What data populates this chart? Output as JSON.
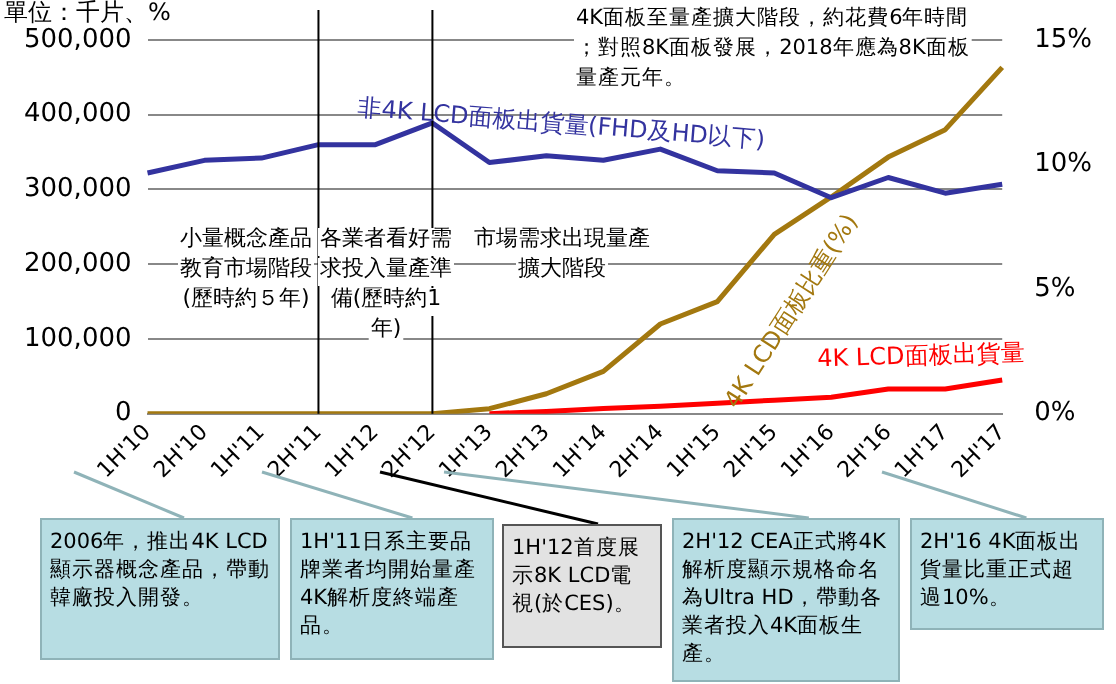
{
  "chart_data": {
    "type": "line",
    "ylabel": "單位：千片、%",
    "categories": [
      "1H'10",
      "2H'10",
      "1H'11",
      "2H'11",
      "1H'12",
      "2H'12",
      "1H'13",
      "2H'13",
      "1H'14",
      "2H'14",
      "1H'15",
      "2H'15",
      "1H'16",
      "2H'16",
      "1H'17",
      "2H'17"
    ],
    "series": [
      {
        "name": "非4K LCD面板出貨量(FHD及HD以下)",
        "color": "#33339f",
        "values": [
          322000,
          339000,
          342000,
          360000,
          360000,
          389000,
          336000,
          345000,
          339000,
          354000,
          325000,
          322000,
          289000,
          316000,
          295000,
          307000
        ]
      },
      {
        "name": "4K LCD面板比重(%)",
        "color": "#a3780f",
        "axis": "y2",
        "values": [
          0,
          0,
          0,
          0,
          0,
          0,
          0.2,
          0.8,
          1.7,
          3.6,
          4.5,
          7.2,
          8.7,
          10.3,
          11.4,
          13.9
        ]
      },
      {
        "name": "4K LCD面板出貨量",
        "color": "#ff0000",
        "values": [
          null,
          null,
          null,
          null,
          null,
          null,
          0,
          3000,
          7000,
          10000,
          14000,
          18000,
          22000,
          33000,
          33000,
          45000
        ]
      }
    ],
    "ylim": [
      0,
      500000
    ],
    "yticks": [
      0,
      {
        "value": 100000,
        "label": "100,000"
      },
      {
        "value": 200000,
        "label": "200,000"
      },
      {
        "value": 300000,
        "label": "300,000"
      },
      {
        "value": 400000,
        "label": "400,000"
      },
      {
        "value": 500000,
        "label": "500,000"
      }
    ],
    "y2lim": [
      0,
      15
    ],
    "y2ticks": [
      {
        "value": 0,
        "label": "0%"
      },
      {
        "value": 5,
        "label": "5%"
      },
      {
        "value": 10,
        "label": "10%"
      },
      {
        "value": 15,
        "label": "15%"
      }
    ],
    "grid": "y",
    "legend": false,
    "marker": "none",
    "line_style": "solid",
    "ref_lines": [
      {
        "axis": "x",
        "value": "2H'11",
        "color": "#000000"
      },
      {
        "axis": "x",
        "value": "2H'12",
        "color": "#000000"
      }
    ],
    "annotations": [
      "4K面板至量產擴大階段，約花費6年時間；對照8K面板發展，2018年應為8K面板量產元年。",
      "小量概念產品教育市場階段(歷時約５年)",
      "各業者看好需求投入量產準備(歷時約1年)",
      "市場需求出現量產擴大階段",
      "2006年，推出4K LCD顯示器概念產品，帶動韓廠投入開發。",
      "1H'11日系主要品牌業者均開始量產4K解析度終端產品。",
      "1H'12首度展示8K LCD電視(於CES)。",
      "2H'12 CEA正式將4K解析度顯示規格命名為Ultra HD，帶動各業者投入4K面板生產。",
      "2H'16 4K面板出貨量比重正式超過10%。"
    ]
  }
}
